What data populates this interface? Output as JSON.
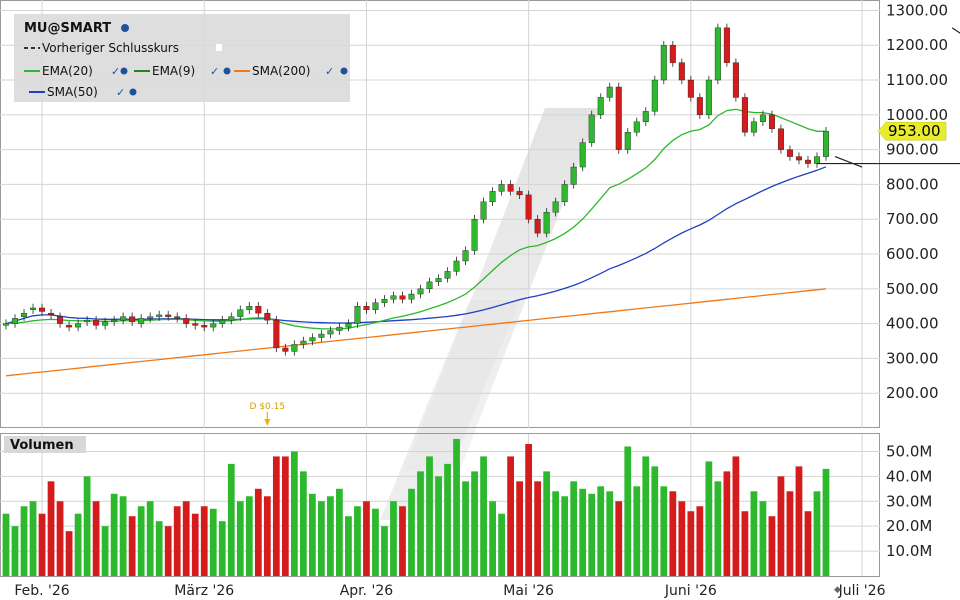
{
  "chart_data": [
    {
      "type": "candlestick",
      "title": "MU@SMART",
      "legend": {
        "placement": "top-left",
        "items": [
          {
            "name": "Vorheriger Schlusskurs",
            "color": "#333333",
            "style": "dashed"
          },
          {
            "name": "EMA(20)",
            "color": "#2db82d"
          },
          {
            "name": "EMA(9)",
            "color": "#1a8a1a"
          },
          {
            "name": "SMA(200)",
            "color": "#f07818"
          },
          {
            "name": "SMA(50)",
            "color": "#2040c0"
          }
        ]
      },
      "y_ticks": [
        "1300.00",
        "1200.00",
        "1100.00",
        "1000.00",
        "900.00",
        "800.00",
        "700.00",
        "600.00",
        "500.00",
        "400.00",
        "300.00",
        "200.00"
      ],
      "ylim": [
        100,
        1330
      ],
      "last_price_label": "953.00",
      "last_price": 953,
      "colors": {
        "up": "#2db82d",
        "down": "#d41c1c",
        "sma50": "#2040c0",
        "sma200": "#f07818",
        "ema20": "#2db82d",
        "price_label_bg": "#e8ec2c"
      },
      "annotations": [
        {
          "text": "D $0.15",
          "candle": 29
        },
        {
          "text": "D $0.15",
          "candle": 108
        }
      ],
      "trendlines": [
        {
          "kind": "support",
          "from_candle": 90,
          "to_candle": 124,
          "y": 860
        },
        {
          "kind": "resistance",
          "from_candle": 105,
          "from_y": 1250,
          "to_candle": 123,
          "to_y": 940
        },
        {
          "kind": "short",
          "from_candle": 92,
          "from_y": 880,
          "to_candle": 95,
          "to_y": 850
        }
      ],
      "close": [
        400,
        415,
        430,
        445,
        435,
        425,
        400,
        390,
        400,
        410,
        395,
        405,
        410,
        420,
        405,
        415,
        420,
        425,
        420,
        415,
        400,
        395,
        390,
        400,
        410,
        420,
        440,
        450,
        430,
        410,
        330,
        320,
        340,
        350,
        360,
        370,
        380,
        390,
        400,
        450,
        440,
        460,
        470,
        480,
        470,
        485,
        500,
        520,
        530,
        550,
        580,
        610,
        700,
        750,
        780,
        800,
        780,
        770,
        700,
        660,
        720,
        750,
        800,
        850,
        920,
        1000,
        1050,
        1080,
        900,
        950,
        980,
        1010,
        1100,
        1200,
        1150,
        1100,
        1050,
        1000,
        1100,
        1250,
        1150,
        1050,
        950,
        980,
        1000,
        960,
        900,
        880,
        870,
        860,
        880,
        953
      ],
      "open": [
        395,
        400,
        420,
        440,
        445,
        430,
        420,
        395,
        390,
        405,
        410,
        395,
        405,
        410,
        420,
        400,
        415,
        420,
        425,
        420,
        415,
        400,
        395,
        390,
        400,
        410,
        420,
        440,
        450,
        430,
        410,
        330,
        320,
        340,
        350,
        360,
        370,
        380,
        390,
        400,
        450,
        440,
        460,
        470,
        480,
        470,
        485,
        500,
        520,
        530,
        550,
        580,
        610,
        700,
        750,
        780,
        800,
        780,
        770,
        700,
        660,
        720,
        750,
        800,
        850,
        920,
        1000,
        1050,
        1080,
        900,
        950,
        980,
        1010,
        1100,
        1200,
        1150,
        1100,
        1050,
        1000,
        1100,
        1250,
        1150,
        1050,
        950,
        980,
        1000,
        960,
        900,
        880,
        870,
        860,
        880
      ]
    },
    {
      "type": "bar",
      "title": "Volumen",
      "y_ticks": [
        "50.0M",
        "40.0M",
        "30.0M",
        "20.0M",
        "10.0M"
      ],
      "ylim": [
        0,
        57
      ],
      "values": [
        25,
        20,
        28,
        30,
        25,
        38,
        30,
        18,
        25,
        40,
        30,
        20,
        33,
        32,
        24,
        28,
        30,
        22,
        20,
        28,
        30,
        25,
        28,
        27,
        22,
        45,
        30,
        32,
        35,
        32,
        48,
        48,
        50,
        42,
        33,
        30,
        32,
        35,
        24,
        28,
        30,
        27,
        20,
        30,
        28,
        35,
        42,
        48,
        40,
        45,
        55,
        38,
        42,
        48,
        30,
        25,
        48,
        38,
        53,
        38,
        42,
        34,
        32,
        38,
        35,
        33,
        36,
        34,
        30,
        52,
        36,
        48,
        44,
        36,
        34,
        30,
        26,
        28,
        46,
        38,
        42,
        48,
        26,
        34,
        30,
        24,
        40,
        34,
        44,
        26,
        34,
        43
      ]
    }
  ],
  "x_axis": {
    "labels": [
      {
        "text": "Feb. '26",
        "candle": 4
      },
      {
        "text": "März '26",
        "candle": 22
      },
      {
        "text": "Apr. '26",
        "candle": 40
      },
      {
        "text": "Mai '26",
        "candle": 58
      },
      {
        "text": "Juni '26",
        "candle": 76
      },
      {
        "text": "Juli '26",
        "candle": 95
      }
    ]
  }
}
